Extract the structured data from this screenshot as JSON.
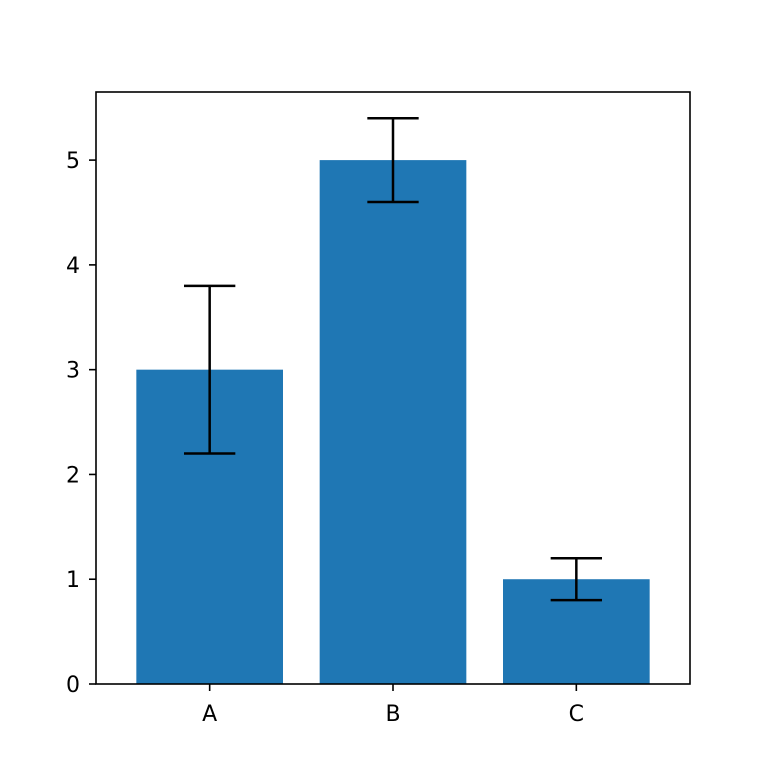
{
  "chart_data": {
    "type": "bar",
    "categories": [
      "A",
      "B",
      "C"
    ],
    "values": [
      3,
      5,
      1
    ],
    "errors": [
      0.8,
      0.4,
      0.2
    ],
    "ylim": [
      0,
      5.65
    ],
    "yticks": [
      0,
      1,
      2,
      3,
      4,
      5
    ],
    "title": "",
    "xlabel": "",
    "ylabel": "",
    "grid": false,
    "bar_color": "#1f77b4",
    "error_color": "#000000",
    "axis_color": "#000000"
  }
}
